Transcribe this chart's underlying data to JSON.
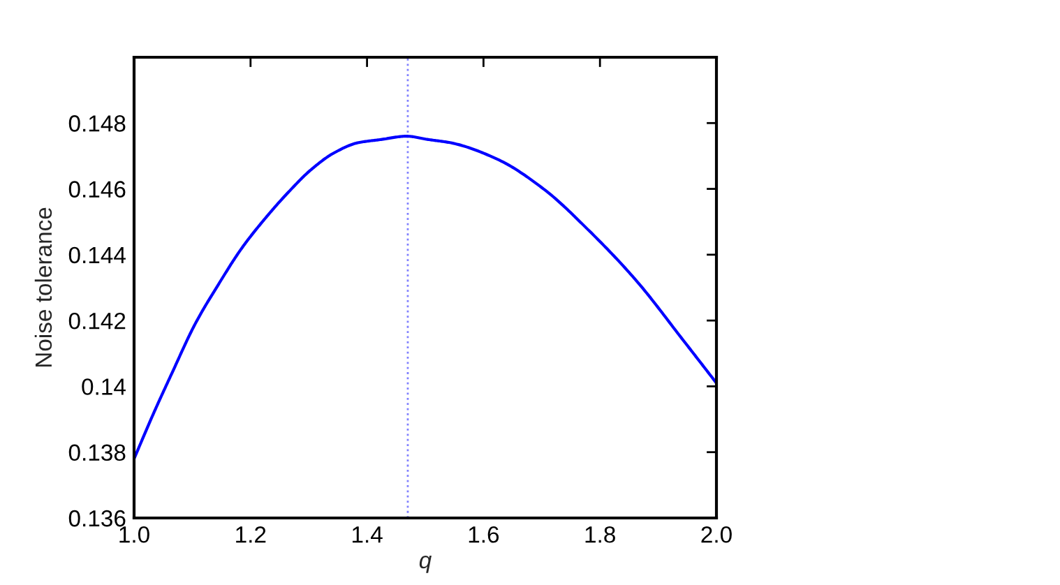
{
  "chart_data": {
    "type": "line",
    "xlabel": "q",
    "ylabel": "Noise tolerance",
    "x": [
      1.0,
      1.034,
      1.065,
      1.105,
      1.145,
      1.185,
      1.225,
      1.265,
      1.305,
      1.344,
      1.384,
      1.424,
      1.468,
      1.505,
      1.544,
      1.624,
      1.703,
      1.783,
      1.863,
      1.943,
      2.0
    ],
    "series": [
      {
        "color": "#0000ff",
        "values": [
          0.1378,
          0.1392,
          0.1404,
          0.1419,
          0.1431,
          0.1442,
          0.1451,
          0.1459,
          0.1466,
          0.1471,
          0.1474,
          0.1475,
          0.1476,
          0.1475,
          0.1474,
          0.1469,
          0.146,
          0.1447,
          0.1432,
          0.1414,
          0.1401
        ]
      }
    ],
    "xlim": [
      1.0,
      2.0
    ],
    "xticks": [
      {
        "value": 1,
        "label": "1.0"
      },
      1.2,
      1.4,
      1.6,
      1.8,
      {
        "value": 2,
        "label": "2.0"
      }
    ],
    "ylim": [
      0.136,
      0.15
    ],
    "yticks": [
      0.136,
      0.138,
      0.14,
      0.142,
      0.144,
      0.146,
      0.148
    ],
    "ref_lines": [
      {
        "axis": "x",
        "value": 1.47,
        "color": "#8080ff",
        "line_style": "dotted"
      }
    ],
    "grid": false,
    "legend": false,
    "line_style": "solid"
  }
}
